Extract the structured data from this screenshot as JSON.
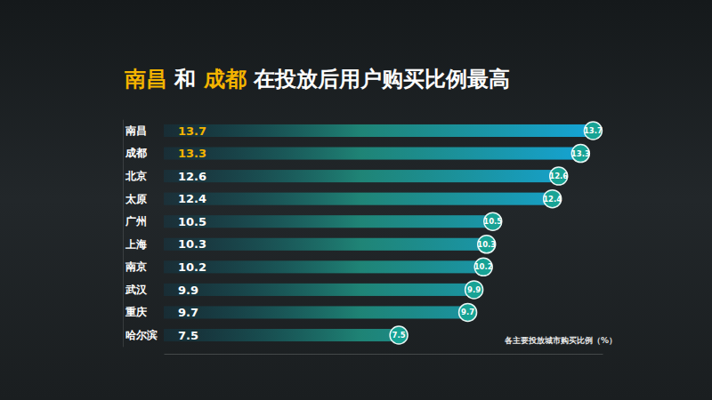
{
  "chart_data": {
    "type": "bar",
    "orientation": "horizontal",
    "title": "南昌 和 成都 在投放后用户购买比例最高",
    "xlabel": "各主要投放城市购买比例（%）",
    "categories": [
      "南昌",
      "成都",
      "北京",
      "太原",
      "广州",
      "上海",
      "南京",
      "武汉",
      "重庆",
      "哈尔滨"
    ],
    "values": [
      13.7,
      13.3,
      12.6,
      12.4,
      10.5,
      10.3,
      10.2,
      9.9,
      9.7,
      7.5
    ],
    "color": "#14a6dc",
    "xlim": [
      0,
      14
    ],
    "grid": false,
    "data_labels": true,
    "tick_labels": "y"
  }
}
